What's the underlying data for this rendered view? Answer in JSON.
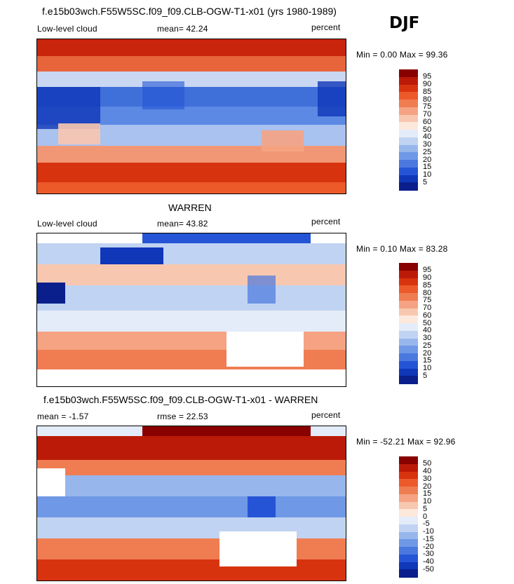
{
  "season": "DJF",
  "panels": [
    {
      "title": "f.e15b03wch.F55W5SC.f09_f09.CLB-OGW-T1-x01 (yrs 1980-1989)",
      "left_label": "Low-level cloud",
      "stat_label": "mean=  42.24",
      "units": "percent",
      "minmax": "Min =   0.00 Max =  99.36",
      "colorbar": {
        "labels": [
          "95",
          "90",
          "85",
          "80",
          "75",
          "70",
          "60",
          "50",
          "40",
          "30",
          "25",
          "20",
          "15",
          "10",
          "5"
        ],
        "colors": [
          "#880000",
          "#bb1a08",
          "#d8330f",
          "#ec5a2a",
          "#f07d52",
          "#f5a383",
          "#f8c7af",
          "#fde8dc",
          "#e4ecf9",
          "#c0d3f2",
          "#97b7ec",
          "#6f98e6",
          "#4a78df",
          "#2555d6",
          "#0f37b8",
          "#0a1f8c"
        ]
      }
    },
    {
      "title": "WARREN",
      "left_label": "Low-level cloud",
      "stat_label": "mean=  43.82",
      "units": "percent",
      "minmax": "Min =   0.10 Max =  83.28",
      "colorbar": {
        "labels": [
          "95",
          "90",
          "85",
          "80",
          "75",
          "70",
          "60",
          "50",
          "40",
          "30",
          "25",
          "20",
          "15",
          "10",
          "5"
        ],
        "colors": [
          "#880000",
          "#bb1a08",
          "#d8330f",
          "#ec5a2a",
          "#f07d52",
          "#f5a383",
          "#f8c7af",
          "#fde8dc",
          "#e4ecf9",
          "#c0d3f2",
          "#97b7ec",
          "#6f98e6",
          "#4a78df",
          "#2555d6",
          "#0f37b8",
          "#0a1f8c"
        ]
      }
    },
    {
      "title": "f.e15b03wch.F55W5SC.f09_f09.CLB-OGW-T1-x01 - WARREN",
      "left_label": "mean =  -1.57",
      "stat_label": "rmse =  22.53",
      "units": "percent",
      "minmax": "Min = -52.21 Max =  92.96",
      "colorbar": {
        "labels": [
          "50",
          "40",
          "30",
          "20",
          "15",
          "10",
          "5",
          "0",
          "-5",
          "-10",
          "-15",
          "-20",
          "-30",
          "-40",
          "-50"
        ],
        "colors": [
          "#880000",
          "#bb1a08",
          "#d8330f",
          "#ec5a2a",
          "#f07d52",
          "#f5a383",
          "#f8c7af",
          "#fde8dc",
          "#e4ecf9",
          "#c0d3f2",
          "#97b7ec",
          "#6f98e6",
          "#4a78df",
          "#2555d6",
          "#0f37b8",
          "#0a1f8c"
        ]
      }
    }
  ]
}
